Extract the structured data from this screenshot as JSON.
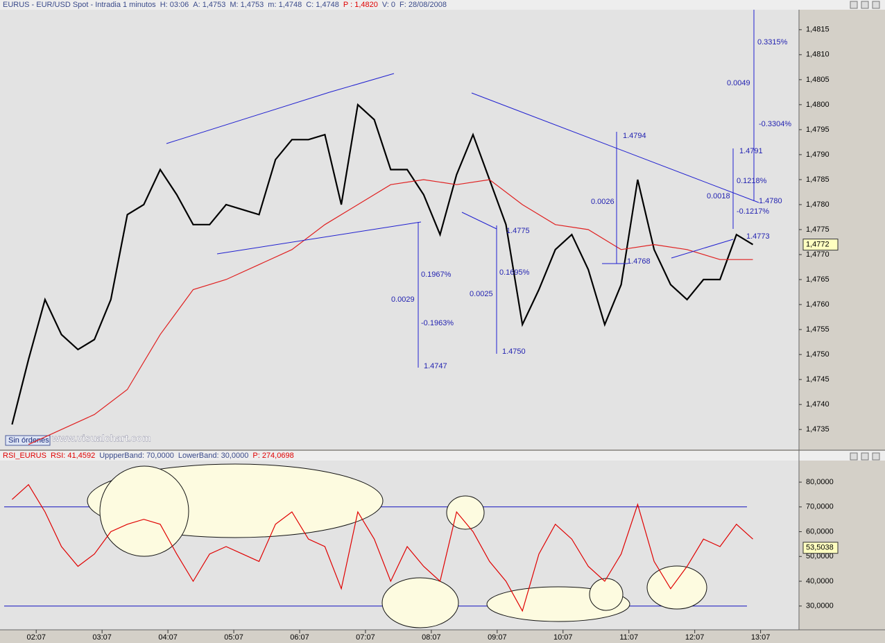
{
  "header": {
    "items": [
      "EURUS - EUR/USD Spot - Intradia 1 minutos",
      "H: 03:06",
      "A: 1,4753",
      "M: 1,4753",
      "m: 1,4748",
      "C: 1,4748",
      "P : 1,4820",
      "V: 0",
      "F: 28/08/2008"
    ]
  },
  "rsi_header": {
    "items": [
      "RSI_EURUS",
      "RSI: 41,4592",
      "UppperBand: 70,0000",
      "LowerBand: 30,0000",
      "P: 274,0698"
    ]
  },
  "status": "Sin órdenes",
  "watermark": "www.visualchart.com",
  "annotations": [
    "0.3315%",
    "0.0049",
    "-0.3304%",
    "1.4794",
    "1.4791",
    "0.1218%",
    "0.0018",
    "1.4780",
    "-0.1217%",
    "0.0026",
    "1.4768",
    "0.1967%",
    "0.0029",
    "-0.1963%",
    "1.4747",
    "0.0025",
    "0.1695%",
    "1.4750",
    "1.4775",
    "1.4773"
  ],
  "chart_data": [
    {
      "type": "line",
      "xlim": [
        "01:34",
        "13:42"
      ],
      "xticks": [
        "02:07",
        "03:07",
        "04:07",
        "05:07",
        "06:07",
        "07:07",
        "08:07",
        "09:07",
        "10:07",
        "11:07",
        "12:07",
        "13:07"
      ],
      "ylim": [
        1.4731,
        1.4819
      ],
      "yticks": [
        {
          "value": 1.4735,
          "label": "1,4735"
        },
        {
          "value": 1.474,
          "label": "1,4740"
        },
        {
          "value": 1.4745,
          "label": "1,4745"
        },
        {
          "value": 1.475,
          "label": "1,4750"
        },
        {
          "value": 1.4755,
          "label": "1,4755"
        },
        {
          "value": 1.476,
          "label": "1,4760"
        },
        {
          "value": 1.4765,
          "label": "1,4765"
        },
        {
          "value": 1.477,
          "label": "1,4770"
        },
        {
          "value": 1.4775,
          "label": "1,4775"
        },
        {
          "value": 1.478,
          "label": "1,4780"
        },
        {
          "value": 1.4785,
          "label": "1,4785"
        },
        {
          "value": 1.479,
          "label": "1,4790"
        },
        {
          "value": 1.4795,
          "label": "1,4795"
        },
        {
          "value": 1.48,
          "label": "1,4800"
        },
        {
          "value": 1.4805,
          "label": "1,4805"
        },
        {
          "value": 1.481,
          "label": "1,4810"
        },
        {
          "value": 1.4815,
          "label": "1,4815"
        }
      ],
      "x": [
        "01:45",
        "02:00",
        "02:15",
        "02:30",
        "02:45",
        "03:00",
        "03:15",
        "03:30",
        "03:45",
        "04:00",
        "04:15",
        "04:30",
        "04:45",
        "05:00",
        "05:15",
        "05:30",
        "05:45",
        "06:00",
        "06:15",
        "06:30",
        "06:45",
        "07:00",
        "07:15",
        "07:30",
        "07:45",
        "08:00",
        "08:15",
        "08:30",
        "08:45",
        "09:00",
        "09:15",
        "09:30",
        "09:45",
        "10:00",
        "10:15",
        "10:30",
        "10:45",
        "11:00",
        "11:15",
        "11:30",
        "11:45",
        "12:00",
        "12:15",
        "12:30",
        "12:45",
        "13:00"
      ],
      "series": [
        {
          "color": "#000000",
          "values": [
            1.4736,
            1.4749,
            1.4761,
            1.4754,
            1.4751,
            1.4753,
            1.4761,
            1.4778,
            1.478,
            1.4787,
            1.4782,
            1.4776,
            1.4776,
            1.478,
            1.4779,
            1.4778,
            1.4789,
            1.4793,
            1.4793,
            1.4794,
            1.478,
            1.48,
            1.4797,
            1.4787,
            1.4787,
            1.4782,
            1.4774,
            1.4786,
            1.4794,
            1.4785,
            1.4776,
            1.4756,
            1.4763,
            1.4771,
            1.4774,
            1.4767,
            1.4756,
            1.4764,
            1.4785,
            1.4771,
            1.4764,
            1.4761,
            1.4765,
            1.4765,
            1.4774,
            1.4772
          ]
        },
        {
          "color": "#e02020",
          "x": [
            "02:00",
            "02:30",
            "03:00",
            "03:30",
            "04:00",
            "04:30",
            "05:00",
            "05:30",
            "06:00",
            "06:30",
            "07:00",
            "07:30",
            "08:00",
            "08:30",
            "09:00",
            "09:30",
            "10:00",
            "10:30",
            "11:00",
            "11:30",
            "12:00",
            "12:30",
            "13:00"
          ],
          "values": [
            1.4732,
            1.4735,
            1.4738,
            1.4743,
            1.4754,
            1.4763,
            1.4765,
            1.4768,
            1.4771,
            1.4776,
            1.478,
            1.4784,
            1.4785,
            1.4784,
            1.4785,
            1.478,
            1.4776,
            1.4775,
            1.4771,
            1.4772,
            1.4771,
            1.4769,
            1.4769
          ]
        }
      ],
      "last_value": {
        "value": 1.4772,
        "label": "1,4772"
      }
    },
    {
      "type": "line",
      "ylim": [
        20.4,
        88.7
      ],
      "yticks": [
        {
          "value": 30,
          "label": "30,0000"
        },
        {
          "value": 40,
          "label": "40,0000"
        },
        {
          "value": 50,
          "label": "50,0000"
        },
        {
          "value": 60,
          "label": "60,0000"
        },
        {
          "value": 70,
          "label": "70,0000"
        },
        {
          "value": 80,
          "label": "80,0000"
        }
      ],
      "bands": [
        70,
        30
      ],
      "band_color": "#1010c0",
      "series": [
        {
          "color": "#e00000",
          "values": [
            73,
            79,
            68,
            54,
            46,
            51,
            60,
            63,
            65,
            63,
            51,
            40,
            51,
            54,
            51,
            48,
            63,
            68,
            57,
            54,
            37,
            68,
            57,
            40,
            54,
            46,
            40,
            68,
            60,
            48,
            40,
            28,
            51,
            63,
            57,
            46,
            40,
            51,
            71,
            48,
            37,
            46,
            57,
            54,
            63,
            57
          ]
        }
      ],
      "last_value": {
        "value": 53.5038,
        "label": "53,5038"
      }
    }
  ]
}
